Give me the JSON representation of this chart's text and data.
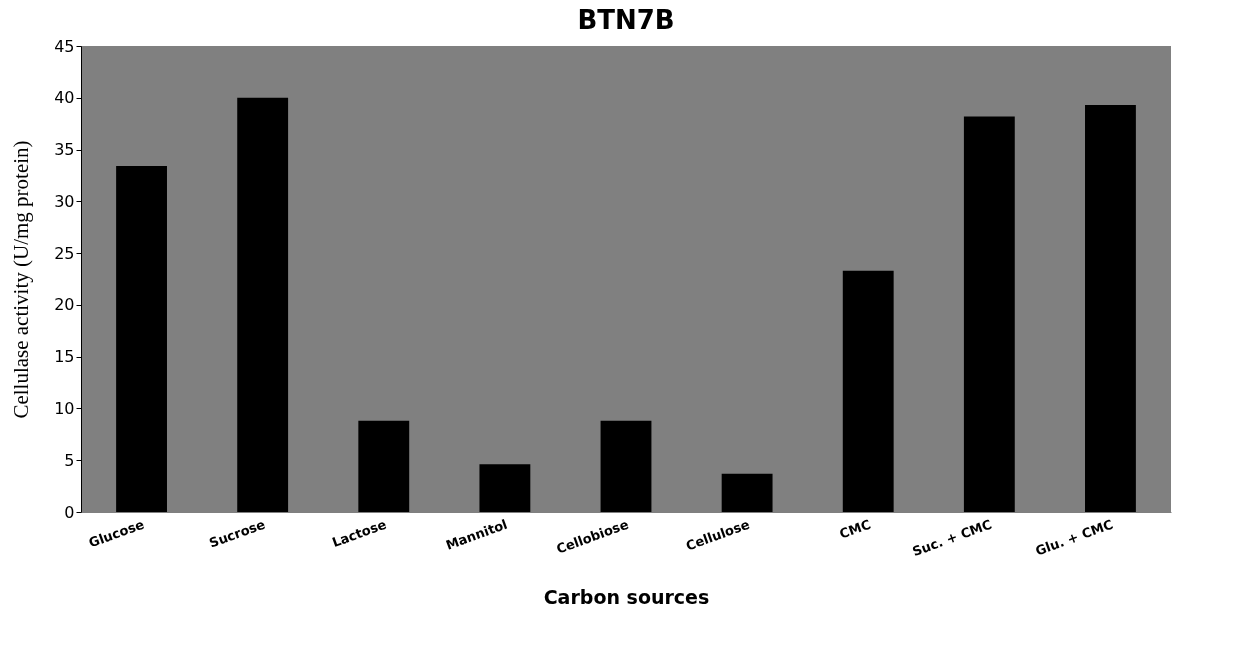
{
  "chart_data": {
    "type": "bar",
    "title": "BTN7B",
    "xlabel": "Carbon sources",
    "ylabel": "Cellulase  activity  (U/mg protein)",
    "categories": [
      "Glucose",
      "Sucrose",
      "Lactose",
      "Mannitol",
      "Cellobiose",
      "Cellulose",
      "CMC",
      "Suc. + CMC",
      "Glu. + CMC"
    ],
    "values": [
      33.4,
      40.0,
      8.8,
      4.6,
      8.8,
      3.7,
      23.3,
      38.2,
      39.3
    ],
    "color": "#000000",
    "ylim": [
      0,
      45
    ],
    "yticks": [
      0,
      5,
      10,
      15,
      20,
      25,
      30,
      35,
      40,
      45
    ],
    "grid": false
  }
}
